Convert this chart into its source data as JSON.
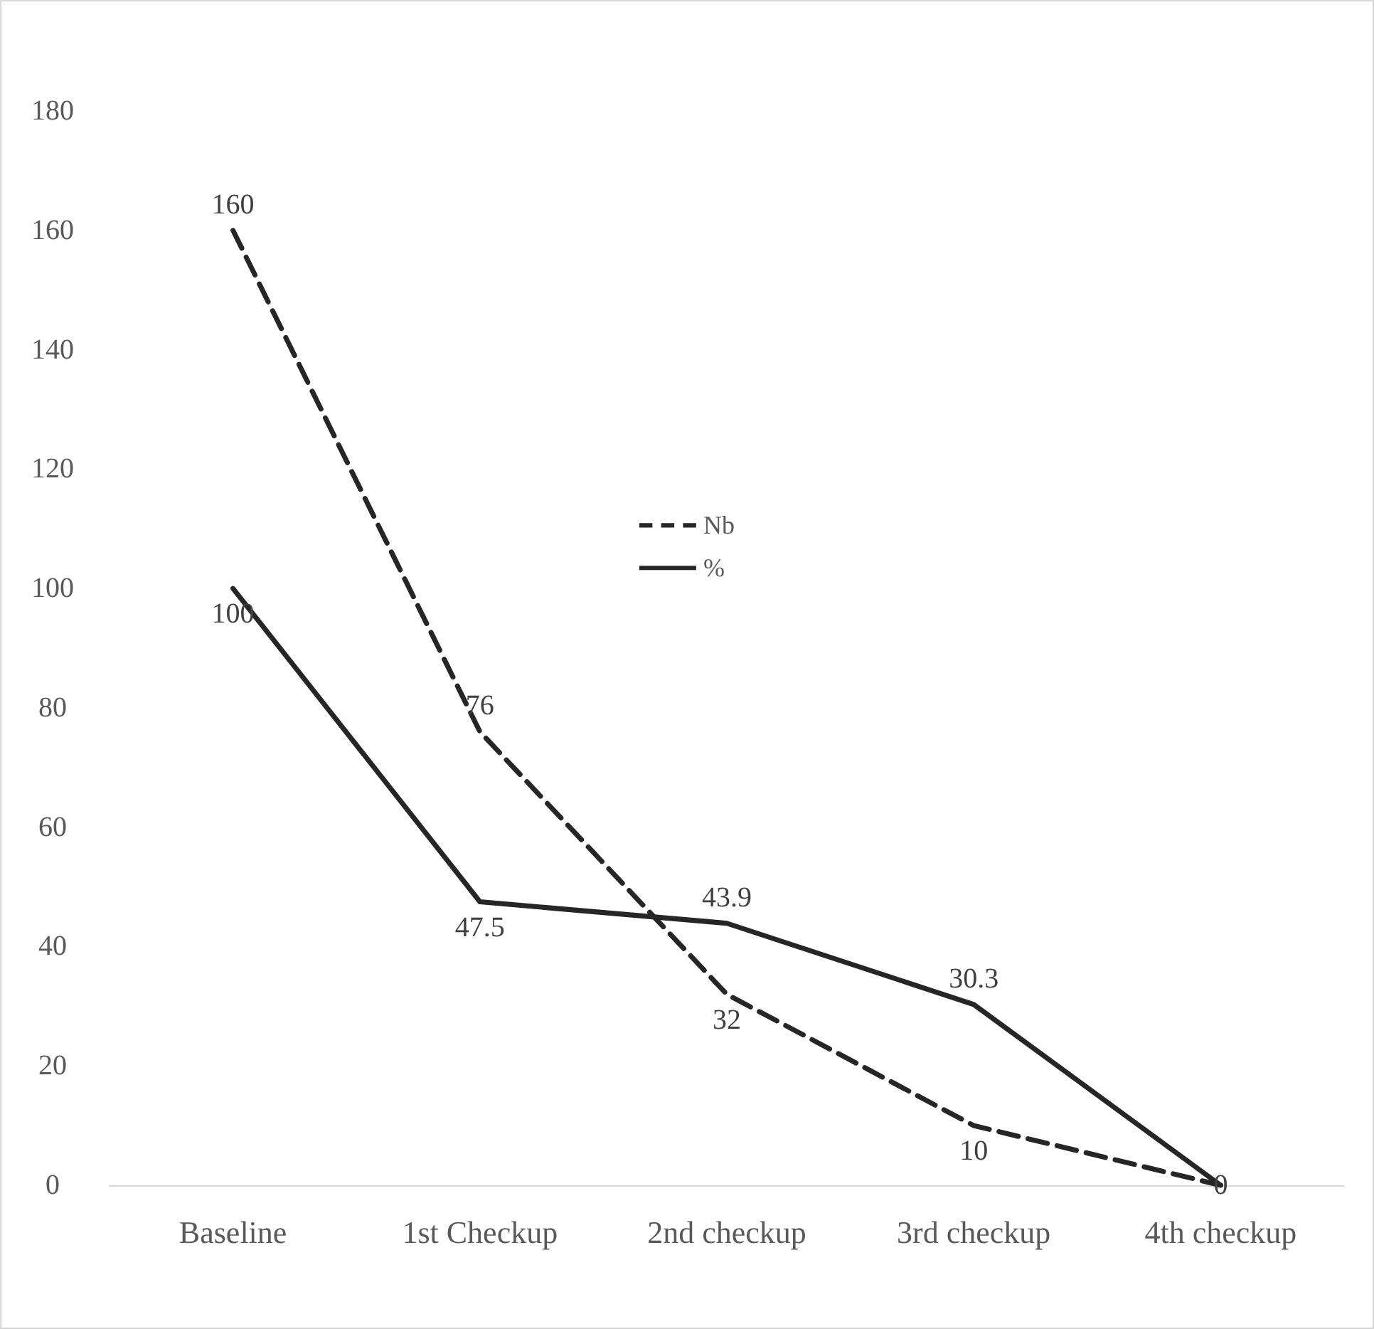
{
  "chart_data": {
    "type": "line",
    "categories": [
      "Baseline",
      "1st Checkup",
      "2nd checkup",
      "3rd checkup",
      "4th checkup"
    ],
    "series": [
      {
        "name": "Nb",
        "color": "#262626",
        "line_style": "dashed",
        "values": [
          160,
          76,
          32,
          10,
          0
        ],
        "value_labels": [
          "160",
          "76",
          "32",
          "10",
          null
        ]
      },
      {
        "name": "%",
        "color": "#262626",
        "line_style": "solid",
        "values": [
          100,
          47.5,
          43.9,
          30.3,
          0
        ],
        "value_labels": [
          "100",
          "47.5",
          "43.9",
          "30.3",
          "0"
        ]
      }
    ],
    "ylim": [
      0,
      180
    ],
    "yticks": [
      0,
      20,
      40,
      60,
      80,
      100,
      120,
      140,
      160,
      180
    ],
    "grid": false,
    "legend": "center",
    "marker": "none"
  }
}
